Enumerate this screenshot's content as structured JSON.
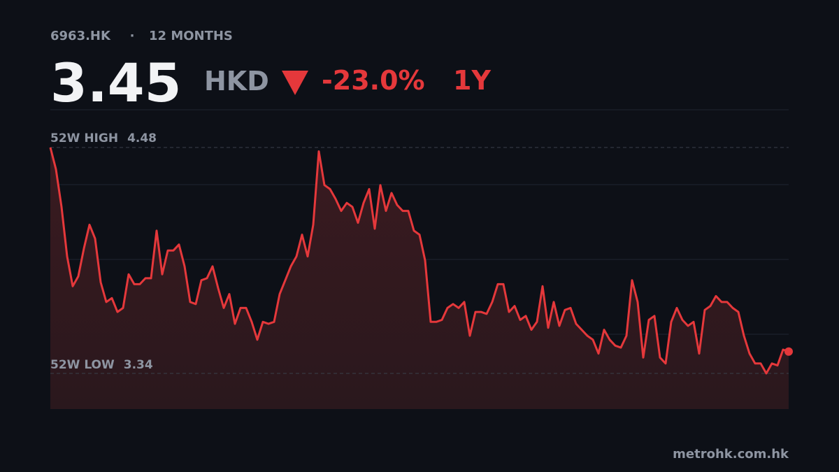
{
  "header": {
    "ticker": "6963.HK",
    "separator": "·",
    "period": "12 MONTHS",
    "price": 3.45,
    "currency": "HKD",
    "change": {
      "value": -23.0,
      "label": "-23.0%"
    },
    "range": "1Y"
  },
  "chart_data": {
    "type": "line",
    "color": "#e5383b",
    "values": [
      4.48,
      4.37,
      4.18,
      3.93,
      3.78,
      3.83,
      3.97,
      4.09,
      4.02,
      3.8,
      3.7,
      3.72,
      3.65,
      3.67,
      3.84,
      3.79,
      3.79,
      3.82,
      3.82,
      4.06,
      3.84,
      3.96,
      3.96,
      3.99,
      3.88,
      3.7,
      3.69,
      3.81,
      3.82,
      3.88,
      3.77,
      3.67,
      3.74,
      3.59,
      3.67,
      3.67,
      3.6,
      3.51,
      3.6,
      3.59,
      3.6,
      3.74,
      3.81,
      3.88,
      3.93,
      4.04,
      3.93,
      4.09,
      4.46,
      4.29,
      4.27,
      4.22,
      4.16,
      4.2,
      4.18,
      4.1,
      4.2,
      4.27,
      4.07,
      4.29,
      4.16,
      4.25,
      4.19,
      4.16,
      4.16,
      4.06,
      4.04,
      3.91,
      3.6,
      3.6,
      3.61,
      3.67,
      3.69,
      3.67,
      3.7,
      3.53,
      3.65,
      3.65,
      3.64,
      3.7,
      3.79,
      3.79,
      3.65,
      3.68,
      3.61,
      3.63,
      3.56,
      3.6,
      3.78,
      3.57,
      3.7,
      3.58,
      3.66,
      3.67,
      3.59,
      3.56,
      3.53,
      3.51,
      3.44,
      3.56,
      3.51,
      3.48,
      3.47,
      3.53,
      3.81,
      3.7,
      3.42,
      3.61,
      3.63,
      3.42,
      3.39,
      3.6,
      3.67,
      3.61,
      3.58,
      3.6,
      3.44,
      3.66,
      3.68,
      3.73,
      3.7,
      3.7,
      3.67,
      3.65,
      3.53,
      3.44,
      3.39,
      3.39,
      3.34,
      3.39,
      3.38,
      3.46,
      3.45
    ],
    "ylim": [
      3.16,
      4.67
    ],
    "high": {
      "label": "52W HIGH",
      "value": 4.48
    },
    "low": {
      "label": "52W LOW",
      "value": 3.34
    }
  },
  "footer": {
    "source": "metrohk.com.hk"
  }
}
